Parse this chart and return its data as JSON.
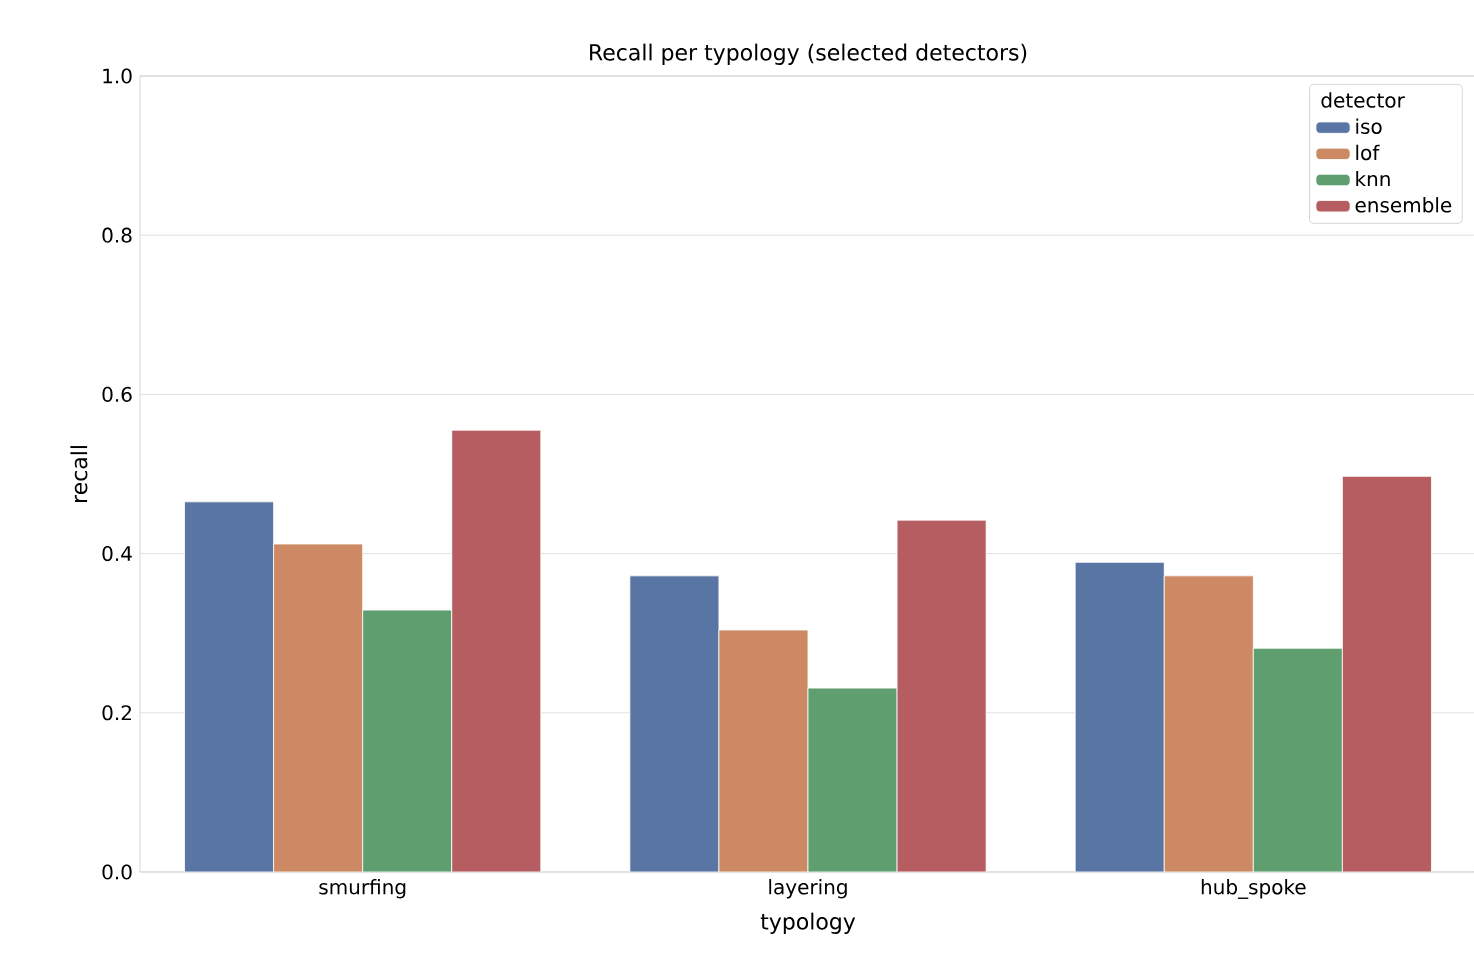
{
  "chart_data": {
    "type": "bar",
    "title": "Recall per typology (selected detectors)",
    "xlabel": "typology",
    "ylabel": "recall",
    "legend_title": "detector",
    "categories": [
      "smurfing",
      "layering",
      "hub_spoke"
    ],
    "series": [
      {
        "name": "iso",
        "color": "#5975a4",
        "values": [
          0.465,
          0.372,
          0.389
        ]
      },
      {
        "name": "lof",
        "color": "#cc8963",
        "values": [
          0.412,
          0.304,
          0.372
        ]
      },
      {
        "name": "knn",
        "color": "#5f9e6e",
        "values": [
          0.329,
          0.231,
          0.281
        ]
      },
      {
        "name": "ensemble",
        "color": "#b55d60",
        "values": [
          0.555,
          0.442,
          0.497
        ]
      }
    ],
    "ylim": [
      0,
      1.0
    ],
    "yticks": [
      {
        "value": 0,
        "label": "0.0"
      },
      {
        "value": 0.2,
        "label": "0.2"
      },
      {
        "value": 0.4,
        "label": "0.4"
      },
      {
        "value": 0.6,
        "label": "0.6"
      },
      {
        "value": 0.8,
        "label": "0.8"
      },
      {
        "value": 1.0,
        "label": "1.0"
      }
    ],
    "grid": "y",
    "legend": "top right"
  }
}
